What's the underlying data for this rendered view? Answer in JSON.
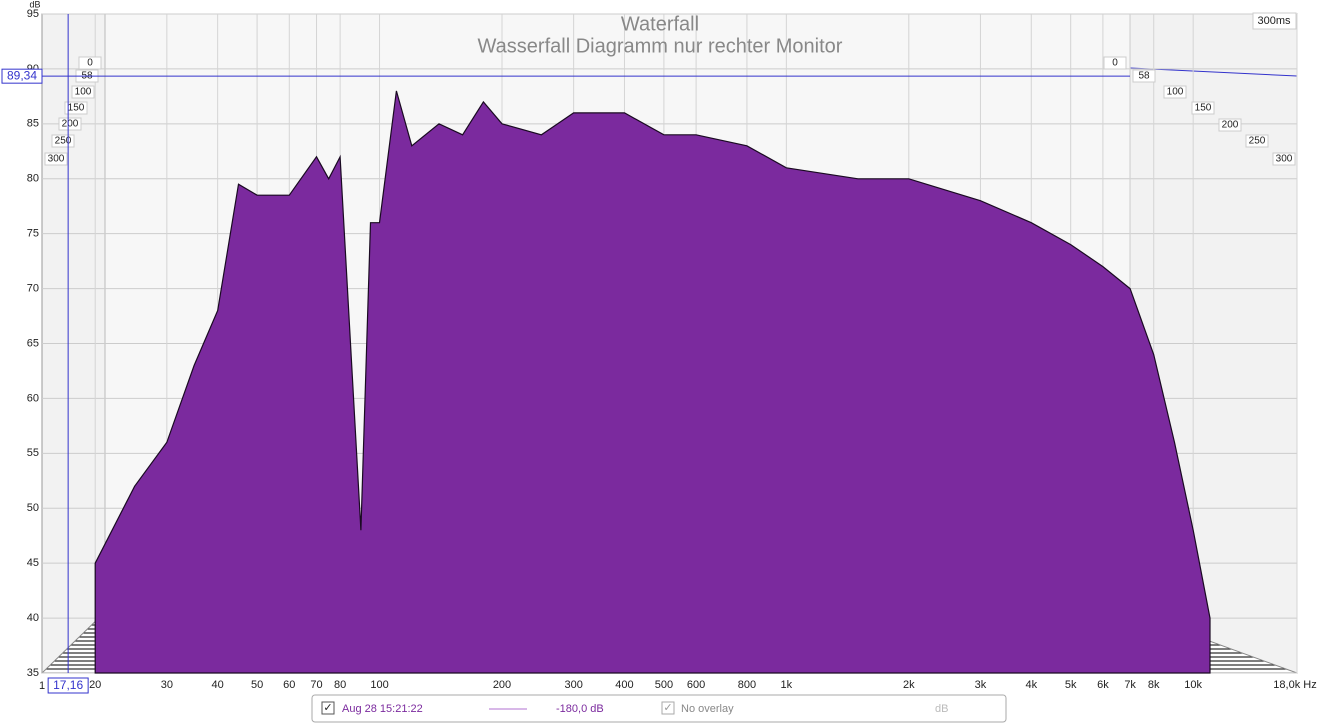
{
  "chart_data": {
    "type": "waterfall",
    "title": "Waterfall",
    "subtitle": "Wasserfall Diagramm nur rechter Monitor",
    "y_label": "dB",
    "x_start_label": "1",
    "time_range_label": "300ms",
    "xlim": [
      14.8,
      18000
    ],
    "ylim": [
      35,
      95
    ],
    "log_x": true,
    "grid": true,
    "yticks": [
      35,
      40,
      45,
      50,
      55,
      60,
      65,
      70,
      75,
      80,
      85,
      90,
      95
    ],
    "xticks": [
      20,
      30,
      40,
      50,
      60,
      70,
      80,
      100,
      200,
      300,
      400,
      500,
      600,
      800,
      {
        "value": 1000,
        "label": "1k"
      },
      {
        "value": 2000,
        "label": "2k"
      },
      {
        "value": 3000,
        "label": "3k"
      },
      {
        "value": 4000,
        "label": "4k"
      },
      {
        "value": 5000,
        "label": "5k"
      },
      {
        "value": 6000,
        "label": "6k"
      },
      {
        "value": 7000,
        "label": "7k"
      },
      {
        "value": 8000,
        "label": "8k"
      },
      {
        "value": 10000,
        "label": "10k"
      },
      {
        "value": 18000,
        "label": "18,0k Hz"
      }
    ],
    "time_ticks": [
      0,
      58,
      100,
      150,
      200,
      250,
      300
    ],
    "cursor": {
      "level": 89.34,
      "level_label": "89,34",
      "freq": 17.16,
      "freq_label": "17,16"
    },
    "x": [
      20,
      25,
      30,
      35,
      40,
      45,
      50,
      60,
      70,
      75,
      80,
      90,
      95,
      100,
      110,
      120,
      140,
      160,
      180,
      200,
      250,
      300,
      400,
      500,
      600,
      800,
      1000,
      1500,
      2000,
      3000,
      4000,
      5000,
      6000,
      7000,
      8000,
      9000,
      10000,
      11000
    ],
    "series": [
      {
        "color": "#7b2a9e",
        "values": [
          45,
          52,
          56,
          63,
          68,
          79.5,
          78.5,
          78.5,
          82,
          80,
          82,
          48,
          76,
          76,
          88,
          83,
          85,
          84,
          87,
          85,
          84,
          86,
          86,
          84,
          84,
          83,
          81,
          80,
          80,
          78,
          76,
          74,
          72,
          70,
          64,
          56,
          48,
          40
        ]
      }
    ]
  },
  "legend_bar": {
    "date": "Aug 28 15:21:22",
    "level": "-180,0 dB",
    "overlay": "No overlay",
    "unit": "dB"
  }
}
